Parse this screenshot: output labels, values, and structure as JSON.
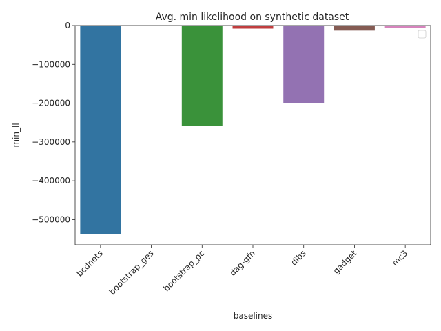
{
  "chart_data": {
    "type": "bar",
    "title": "Avg. min likelihood on synthetic dataset",
    "xlabel": "baselines",
    "ylabel": "min_ll",
    "categories": [
      "bcdnets",
      "bootstrap_ges",
      "bootstrap_pc",
      "dag-gfn",
      "dibs",
      "gadget",
      "mc3"
    ],
    "values": [
      -538000,
      0,
      -258000,
      -8000,
      -199000,
      -13000,
      -7000
    ],
    "colors": [
      "#3274a1",
      "#e1812c",
      "#3a923a",
      "#c03d3e",
      "#9372b2",
      "#845b53",
      "#d684bd"
    ],
    "ylim": [
      -565000,
      0
    ],
    "yticks": [
      0,
      -100000,
      -200000,
      -300000,
      -400000,
      -500000
    ],
    "ytick_labels": [
      "0",
      "−100000",
      "−200000",
      "−300000",
      "−400000",
      "−500000"
    ],
    "grid": false,
    "legend": "top-right"
  }
}
